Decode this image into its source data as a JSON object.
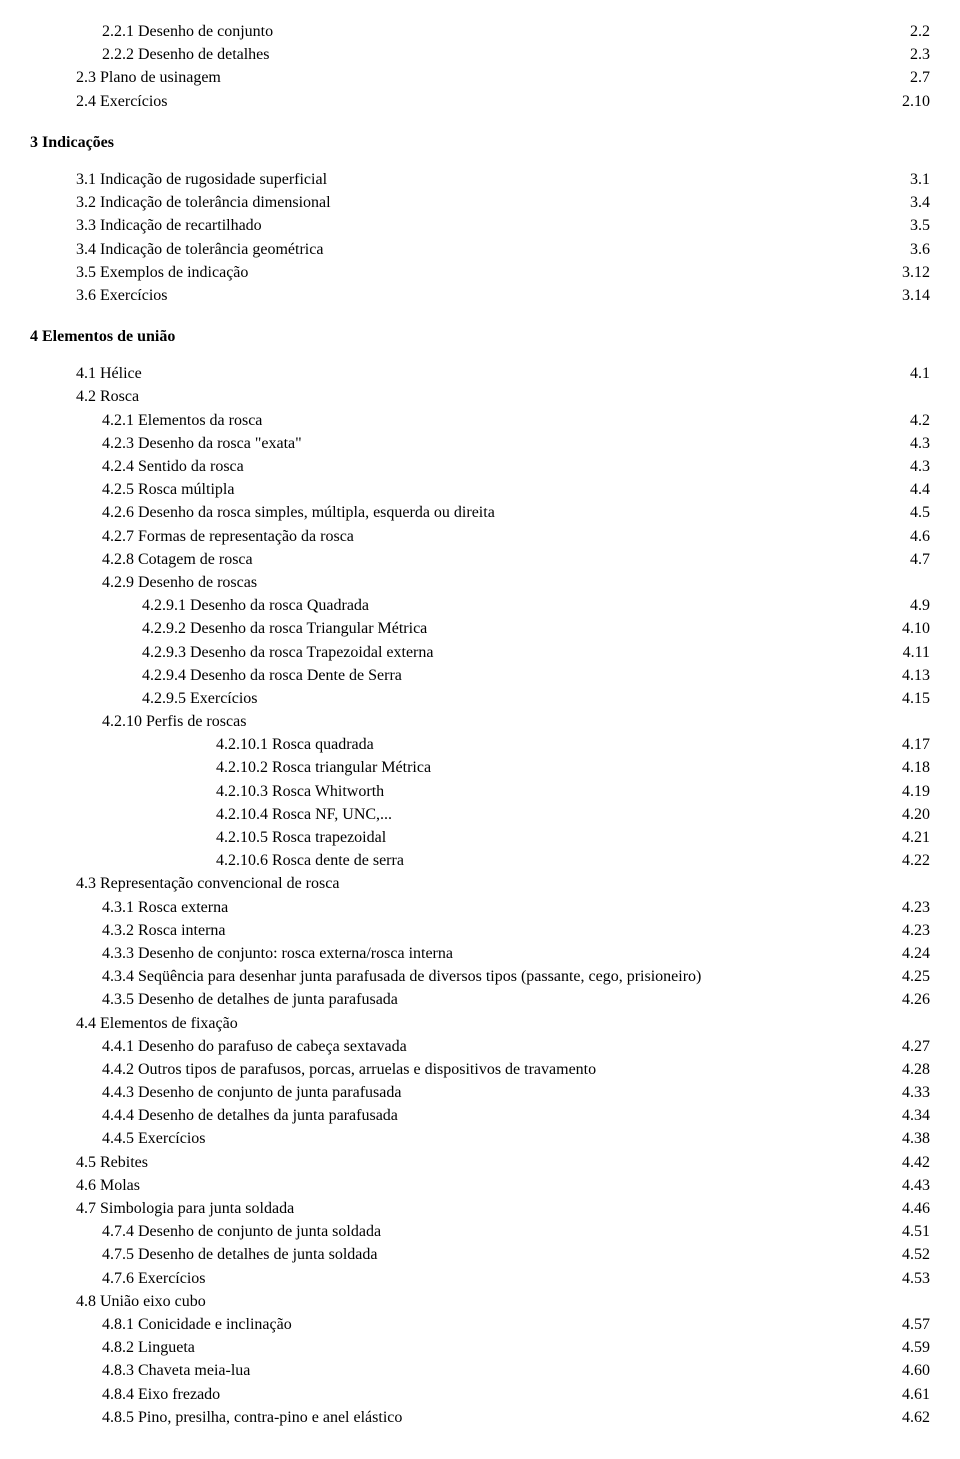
{
  "entries": [
    {
      "indent": 2,
      "text": "2.2.1 Desenho de conjunto",
      "page": "2.2"
    },
    {
      "indent": 2,
      "text": "2.2.2 Desenho de detalhes",
      "page": "2.3"
    },
    {
      "indent": 1,
      "text": "2.3 Plano de usinagem",
      "page": "2.7"
    },
    {
      "indent": 1,
      "text": "2.4 Exercícios",
      "page": "2.10"
    },
    {
      "indent": 0,
      "text": "3 Indicações",
      "heading": true
    },
    {
      "indent": 1,
      "text": "3.1 Indicação de rugosidade superficial",
      "page": "3.1"
    },
    {
      "indent": 1,
      "text": "3.2 Indicação de tolerância dimensional",
      "page": "3.4"
    },
    {
      "indent": 1,
      "text": "3.3 Indicação de recartilhado",
      "page": "3.5"
    },
    {
      "indent": 1,
      "text": "3.4 Indicação de tolerância geométrica",
      "page": "3.6"
    },
    {
      "indent": 1,
      "text": "3.5 Exemplos de indicação",
      "page": "3.12"
    },
    {
      "indent": 1,
      "text": "3.6 Exercícios",
      "page": "3.14"
    },
    {
      "indent": 0,
      "text": "4 Elementos de união",
      "heading": true
    },
    {
      "indent": 1,
      "text": "4.1 Hélice",
      "page": "4.1"
    },
    {
      "indent": 1,
      "text": "4.2 Rosca"
    },
    {
      "indent": 2,
      "text": "4.2.1 Elementos da rosca",
      "page": "4.2"
    },
    {
      "indent": 2,
      "text": "4.2.3 Desenho da rosca \"exata\"",
      "page": "4.3"
    },
    {
      "indent": 2,
      "text": "4.2.4 Sentido da rosca",
      "page": "4.3"
    },
    {
      "indent": 2,
      "text": "4.2.5 Rosca múltipla",
      "page": "4.4"
    },
    {
      "indent": 2,
      "text": "4.2.6 Desenho da rosca simples, múltipla, esquerda ou direita",
      "page": "4.5"
    },
    {
      "indent": 2,
      "text": "4.2.7 Formas de representação da rosca",
      "page": "4.6"
    },
    {
      "indent": 2,
      "text": "4.2.8 Cotagem de rosca",
      "page": "4.7"
    },
    {
      "indent": 2,
      "text": "4.2.9 Desenho de roscas"
    },
    {
      "indent": 3,
      "text": "4.2.9.1 Desenho da rosca Quadrada",
      "page": "4.9"
    },
    {
      "indent": 3,
      "text": "4.2.9.2 Desenho da rosca Triangular Métrica",
      "page": "4.10"
    },
    {
      "indent": 3,
      "text": "4.2.9.3 Desenho da rosca Trapezoidal externa",
      "page": "4.11"
    },
    {
      "indent": 3,
      "text": "4.2.9.4 Desenho da rosca Dente de Serra",
      "page": "4.13"
    },
    {
      "indent": 3,
      "text": "4.2.9.5 Exercícios",
      "page": "4.15"
    },
    {
      "indent": 2,
      "text": "4.2.10 Perfis de roscas"
    },
    {
      "indent": 4,
      "text": "4.2.10.1 Rosca quadrada",
      "page": "4.17"
    },
    {
      "indent": 4,
      "text": "4.2.10.2 Rosca triangular Métrica",
      "page": "4.18"
    },
    {
      "indent": 4,
      "text": "4.2.10.3 Rosca Whitworth",
      "page": "4.19"
    },
    {
      "indent": 4,
      "text": "4.2.10.4 Rosca NF, UNC,...",
      "page": "4.20"
    },
    {
      "indent": 4,
      "text": "4.2.10.5 Rosca trapezoidal",
      "page": "4.21"
    },
    {
      "indent": 4,
      "text": "4.2.10.6 Rosca dente de serra",
      "page": "4.22"
    },
    {
      "indent": 1,
      "text": "4.3 Representação convencional de rosca"
    },
    {
      "indent": 2,
      "text": "4.3.1 Rosca externa",
      "page": "4.23"
    },
    {
      "indent": 2,
      "text": "4.3.2 Rosca interna",
      "page": "4.23"
    },
    {
      "indent": 2,
      "text": "4.3.3 Desenho de conjunto: rosca externa/rosca interna",
      "page": "4.24"
    },
    {
      "indent": 2,
      "text": "4.3.4 Seqüência para desenhar junta parafusada de diversos tipos (passante, cego, prisioneiro)",
      "page": "4.25"
    },
    {
      "indent": 2,
      "text": "4.3.5 Desenho de detalhes de junta parafusada",
      "page": "4.26"
    },
    {
      "indent": 1,
      "text": "4.4 Elementos de fixação"
    },
    {
      "indent": 2,
      "text": "4.4.1 Desenho do parafuso de cabeça sextavada",
      "page": "4.27"
    },
    {
      "indent": 2,
      "text": "4.4.2 Outros tipos de parafusos, porcas, arruelas e dispositivos de travamento",
      "page": "4.28"
    },
    {
      "indent": 2,
      "text": "4.4.3 Desenho de conjunto de junta parafusada",
      "page": "4.33"
    },
    {
      "indent": 2,
      "text": "4.4.4 Desenho de detalhes da junta parafusada",
      "page": "4.34"
    },
    {
      "indent": 2,
      "text": "4.4.5 Exercícios",
      "page": "4.38"
    },
    {
      "indent": 1,
      "text": "4.5 Rebites",
      "page": "4.42"
    },
    {
      "indent": 1,
      "text": "4.6 Molas",
      "page": "4.43"
    },
    {
      "indent": 1,
      "text": "4.7 Simbologia para junta soldada",
      "page": "4.46"
    },
    {
      "indent": 2,
      "text": "4.7.4 Desenho de conjunto de junta soldada",
      "page": "4.51"
    },
    {
      "indent": 2,
      "text": "4.7.5 Desenho de detalhes de junta soldada",
      "page": "4.52"
    },
    {
      "indent": 2,
      "text": "4.7.6 Exercícios",
      "page": "4.53"
    },
    {
      "indent": 1,
      "text": "4.8 União eixo cubo"
    },
    {
      "indent": 2,
      "text": "4.8.1 Conicidade e inclinação",
      "page": "4.57"
    },
    {
      "indent": 2,
      "text": "4.8.2 Lingueta",
      "page": "4.59"
    },
    {
      "indent": 2,
      "text": "4.8.3 Chaveta meia-lua",
      "page": "4.60"
    },
    {
      "indent": 2,
      "text": "4.8.4 Eixo frezado",
      "page": "4.61"
    },
    {
      "indent": 2,
      "text": "4.8.5 Pino, presilha, contra-pino e anel elástico",
      "page": "4.62"
    }
  ]
}
